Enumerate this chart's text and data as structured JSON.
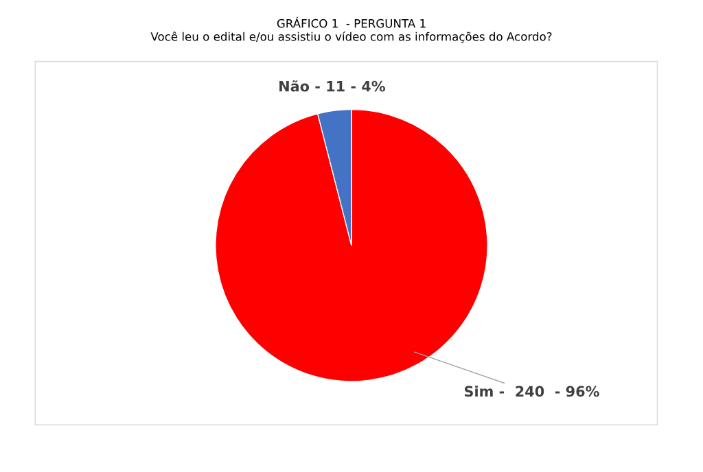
{
  "chart_data": {
    "type": "pie",
    "title": "GRÁFICO 1  - PERGUNTA 1\nVocê leu o edital e/ou assistiu o vídeo com as informações do Acordo?",
    "categories": [
      "Sim -  240  - 96%",
      "Não - 11 - 4%"
    ],
    "values": [
      96,
      4
    ],
    "colors": [
      "#ff0000",
      "#4472c4"
    ],
    "legend": false
  }
}
